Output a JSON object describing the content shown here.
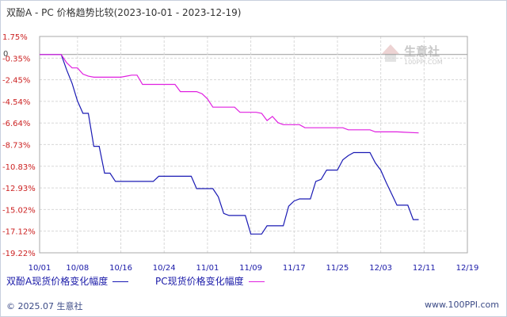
{
  "title": "双酚A - PC 价格趋势比较(2023-10-01 - 2023-12-19)",
  "watermark": {
    "name": "生意社",
    "url": "100PPI.COM"
  },
  "footer": {
    "left": "© 2025.07 生意社",
    "right": "www.100PPI.com"
  },
  "colors": {
    "series_a": "#1a1ab4",
    "series_b": "#e020e0",
    "axis_text": "#1a1aa8",
    "y_axis_text": "#cc2222",
    "grid": "#d8d8d8"
  },
  "chart_data": {
    "type": "line",
    "title": "双酚A - PC 价格趋势比较(2023-10-01 - 2023-12-19)",
    "xlabel": "",
    "ylabel": "",
    "x_range": [
      "10/01",
      "12/19"
    ],
    "ylim": [
      -19.22,
      1.75
    ],
    "y_ticks": [
      1.75,
      -0.35,
      -2.45,
      -4.54,
      -6.64,
      -8.73,
      -10.83,
      -12.93,
      -15.02,
      -17.12,
      -19.22
    ],
    "y_ticklabels": [
      "1.75%",
      "-0.35%",
      "-2.45%",
      "-4.54%",
      "-6.64%",
      "-8.73%",
      "-10.83%",
      "-12.93%",
      "-15.02%",
      "-17.12%",
      "-19.22%"
    ],
    "zero_label": "0",
    "x_ticks": [
      0,
      7,
      15,
      23,
      31,
      39,
      47,
      55,
      63,
      71,
      79
    ],
    "x_ticklabels": [
      "10/01",
      "10/08",
      "10/16",
      "10/24",
      "11/01",
      "11/09",
      "11/17",
      "11/25",
      "12/03",
      "12/11",
      "12/19"
    ],
    "series": [
      {
        "name": "双酚A现货价格变化幅度",
        "color": "#1a1ab4",
        "points": [
          [
            0,
            0
          ],
          [
            4,
            0
          ],
          [
            5,
            -1.5
          ],
          [
            6,
            -2.8
          ],
          [
            7,
            -4.5
          ],
          [
            8,
            -5.7
          ],
          [
            9,
            -5.7
          ],
          [
            10,
            -8.9
          ],
          [
            11,
            -8.9
          ],
          [
            12,
            -11.5
          ],
          [
            13,
            -11.5
          ],
          [
            14,
            -12.3
          ],
          [
            15,
            -12.3
          ],
          [
            16,
            -12.3
          ],
          [
            20,
            -12.3
          ],
          [
            21,
            -12.3
          ],
          [
            22,
            -11.8
          ],
          [
            27,
            -11.8
          ],
          [
            28,
            -11.8
          ],
          [
            29,
            -13.0
          ],
          [
            32,
            -13.0
          ],
          [
            33,
            -13.8
          ],
          [
            34,
            -15.4
          ],
          [
            35,
            -15.6
          ],
          [
            37,
            -15.6
          ],
          [
            38,
            -15.6
          ],
          [
            39,
            -17.4
          ],
          [
            41,
            -17.4
          ],
          [
            42,
            -16.6
          ],
          [
            44,
            -16.6
          ],
          [
            45,
            -16.6
          ],
          [
            46,
            -14.7
          ],
          [
            47,
            -14.2
          ],
          [
            48,
            -14.0
          ],
          [
            50,
            -14.0
          ],
          [
            51,
            -12.3
          ],
          [
            52,
            -12.1
          ],
          [
            53,
            -11.2
          ],
          [
            55,
            -11.2
          ],
          [
            56,
            -10.2
          ],
          [
            57,
            -9.8
          ],
          [
            58,
            -9.5
          ],
          [
            61,
            -9.5
          ],
          [
            62,
            -10.5
          ],
          [
            63,
            -11.2
          ],
          [
            64,
            -12.4
          ],
          [
            65,
            -13.5
          ],
          [
            66,
            -14.6
          ],
          [
            67,
            -14.6
          ],
          [
            68,
            -14.6
          ],
          [
            69,
            -16.0
          ],
          [
            70,
            -16.0
          ]
        ]
      },
      {
        "name": "PC现货价格变化幅度",
        "color": "#e020e0",
        "points": [
          [
            0,
            0
          ],
          [
            4,
            0
          ],
          [
            5,
            -0.8
          ],
          [
            6,
            -1.3
          ],
          [
            7,
            -1.3
          ],
          [
            8,
            -1.9
          ],
          [
            9,
            -2.1
          ],
          [
            10,
            -2.2
          ],
          [
            15,
            -2.2
          ],
          [
            16,
            -2.1
          ],
          [
            17,
            -2.0
          ],
          [
            18,
            -2.0
          ],
          [
            19,
            -2.9
          ],
          [
            25,
            -2.9
          ],
          [
            26,
            -3.6
          ],
          [
            29,
            -3.6
          ],
          [
            30,
            -3.8
          ],
          [
            31,
            -4.3
          ],
          [
            32,
            -5.1
          ],
          [
            36,
            -5.1
          ],
          [
            37,
            -5.6
          ],
          [
            40,
            -5.6
          ],
          [
            41,
            -5.7
          ],
          [
            42,
            -6.4
          ],
          [
            43,
            -6.0
          ],
          [
            44,
            -6.6
          ],
          [
            45,
            -6.8
          ],
          [
            48,
            -6.8
          ],
          [
            49,
            -7.1
          ],
          [
            56,
            -7.1
          ],
          [
            57,
            -7.3
          ],
          [
            61,
            -7.3
          ],
          [
            62,
            -7.5
          ],
          [
            66,
            -7.5
          ],
          [
            70,
            -7.6
          ]
        ]
      }
    ]
  }
}
